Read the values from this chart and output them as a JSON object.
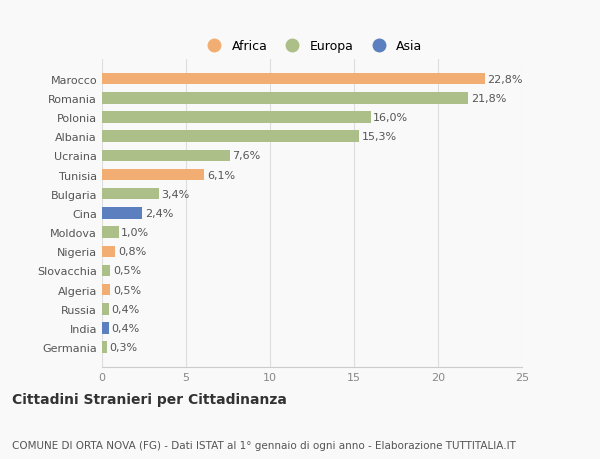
{
  "categories": [
    "Germania",
    "India",
    "Russia",
    "Algeria",
    "Slovacchia",
    "Nigeria",
    "Moldova",
    "Cina",
    "Bulgaria",
    "Tunisia",
    "Ucraina",
    "Albania",
    "Polonia",
    "Romania",
    "Marocco"
  ],
  "values": [
    0.3,
    0.4,
    0.4,
    0.5,
    0.5,
    0.8,
    1.0,
    2.4,
    3.4,
    6.1,
    7.6,
    15.3,
    16.0,
    21.8,
    22.8
  ],
  "continents": [
    "Europa",
    "Asia",
    "Europa",
    "Africa",
    "Europa",
    "Africa",
    "Europa",
    "Asia",
    "Europa",
    "Africa",
    "Europa",
    "Europa",
    "Europa",
    "Europa",
    "Africa"
  ],
  "labels": [
    "0,3%",
    "0,4%",
    "0,4%",
    "0,5%",
    "0,5%",
    "0,8%",
    "1,0%",
    "2,4%",
    "3,4%",
    "6,1%",
    "7,6%",
    "15,3%",
    "16,0%",
    "21,8%",
    "22,8%"
  ],
  "colors": {
    "Africa": "#F2AE72",
    "Europa": "#ADBF88",
    "Asia": "#5B7FBF"
  },
  "legend_labels": [
    "Africa",
    "Europa",
    "Asia"
  ],
  "legend_colors": [
    "#F2AE72",
    "#ADBF88",
    "#5B7FBF"
  ],
  "xlim": [
    0,
    25
  ],
  "xticks": [
    0,
    5,
    10,
    15,
    20,
    25
  ],
  "title": "Cittadini Stranieri per Cittadinanza",
  "subtitle": "COMUNE DI ORTA NOVA (FG) - Dati ISTAT al 1° gennaio di ogni anno - Elaborazione TUTTITALIA.IT",
  "background_color": "#f9f9f9",
  "bar_height": 0.6,
  "label_fontsize": 8,
  "tick_fontsize": 8,
  "title_fontsize": 10,
  "subtitle_fontsize": 7.5
}
